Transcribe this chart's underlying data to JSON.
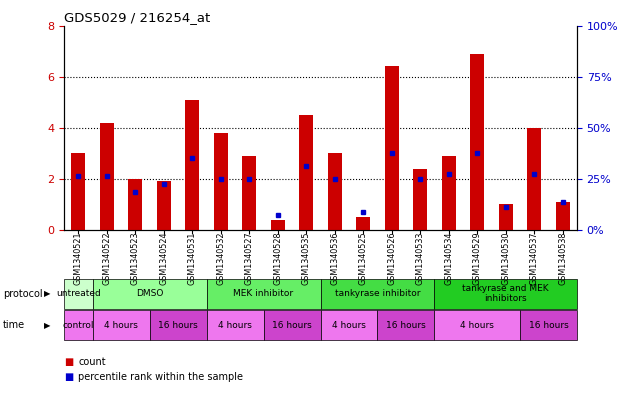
{
  "title": "GDS5029 / 216254_at",
  "samples": [
    "GSM1340521",
    "GSM1340522",
    "GSM1340523",
    "GSM1340524",
    "GSM1340531",
    "GSM1340532",
    "GSM1340527",
    "GSM1340528",
    "GSM1340535",
    "GSM1340536",
    "GSM1340525",
    "GSM1340526",
    "GSM1340533",
    "GSM1340534",
    "GSM1340529",
    "GSM1340530",
    "GSM1340537",
    "GSM1340538"
  ],
  "count_values": [
    3.0,
    4.2,
    2.0,
    1.9,
    5.1,
    3.8,
    2.9,
    0.4,
    4.5,
    3.0,
    0.5,
    6.4,
    2.4,
    2.9,
    6.9,
    1.0,
    4.0,
    1.1
  ],
  "percentile_values": [
    2.1,
    2.1,
    1.5,
    1.8,
    2.8,
    2.0,
    2.0,
    0.6,
    2.5,
    2.0,
    0.7,
    3.0,
    2.0,
    2.2,
    3.0,
    0.9,
    2.2,
    1.1
  ],
  "bar_color": "#cc0000",
  "dot_color": "#0000cc",
  "ylim": [
    0,
    8
  ],
  "y2lim": [
    0,
    100
  ],
  "yticks": [
    0,
    2,
    4,
    6,
    8
  ],
  "y2ticks": [
    0,
    25,
    50,
    75,
    100
  ],
  "protocol_groups": [
    {
      "label": "untreated",
      "start": 0,
      "end": 1
    },
    {
      "label": "DMSO",
      "start": 1,
      "end": 5
    },
    {
      "label": "MEK inhibitor",
      "start": 5,
      "end": 9
    },
    {
      "label": "tankyrase inhibitor",
      "start": 9,
      "end": 13
    },
    {
      "label": "tankyrase and MEK\ninhibitors",
      "start": 13,
      "end": 18
    }
  ],
  "proto_colors": [
    "#ccffcc",
    "#99ff99",
    "#66ee66",
    "#44dd44",
    "#22cc22"
  ],
  "time_groups": [
    {
      "label": "control",
      "start": 0,
      "end": 1
    },
    {
      "label": "4 hours",
      "start": 1,
      "end": 3
    },
    {
      "label": "16 hours",
      "start": 3,
      "end": 5
    },
    {
      "label": "4 hours",
      "start": 5,
      "end": 7
    },
    {
      "label": "16 hours",
      "start": 7,
      "end": 9
    },
    {
      "label": "4 hours",
      "start": 9,
      "end": 11
    },
    {
      "label": "16 hours",
      "start": 11,
      "end": 13
    },
    {
      "label": "4 hours",
      "start": 13,
      "end": 16
    },
    {
      "label": "16 hours",
      "start": 16,
      "end": 18
    }
  ],
  "time_colors": [
    "#ee77ee",
    "#ee77ee",
    "#cc44cc",
    "#ee77ee",
    "#cc44cc",
    "#ee77ee",
    "#cc44cc",
    "#ee77ee",
    "#cc44cc"
  ],
  "bg_color": "#ffffff",
  "label_color_left": "#cc0000",
  "label_color_right": "#0000cc"
}
